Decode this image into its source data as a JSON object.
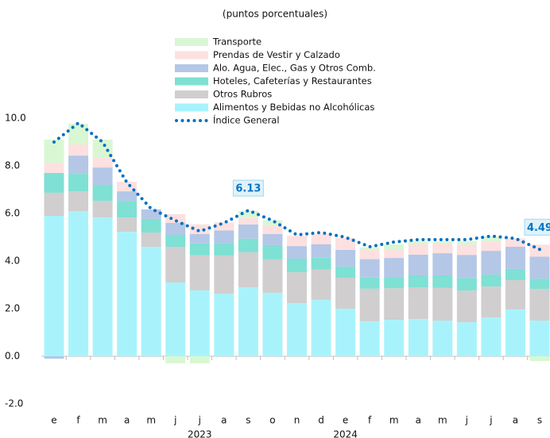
{
  "chart_data": {
    "type": "bar",
    "stacked": true,
    "subtitle": "(puntos porcentuales)",
    "categories": [
      "e",
      "f",
      "m",
      "a",
      "m",
      "j",
      "j",
      "a",
      "s",
      "o",
      "n",
      "d",
      "e",
      "f",
      "m",
      "a",
      "m",
      "j",
      "j",
      "a",
      "s"
    ],
    "year_labels": [
      "2023",
      "2024"
    ],
    "ylim": [
      -2,
      10
    ],
    "yticks": [
      {
        "value": -2,
        "label": "-2.0"
      },
      {
        "value": 0,
        "label": "0.0"
      },
      {
        "value": 2,
        "label": "2.0"
      },
      {
        "value": 4,
        "label": "4.0"
      },
      {
        "value": 6,
        "label": "6.0"
      },
      {
        "value": 8,
        "label": "8.0"
      },
      {
        "value": 10,
        "label": "10.0"
      }
    ],
    "series": [
      {
        "name": "Alimentos y Bebidas no Alcohólicas",
        "color": "#a8f3fb",
        "values": [
          5.9,
          6.1,
          5.83,
          5.23,
          4.6,
          3.1,
          2.77,
          2.63,
          2.9,
          2.67,
          2.23,
          2.37,
          2.0,
          1.47,
          1.53,
          1.57,
          1.5,
          1.43,
          1.63,
          1.97,
          1.5
        ]
      },
      {
        "name": "Otros Rubros",
        "color": "#d0cece",
        "values": [
          0.97,
          0.83,
          0.7,
          0.6,
          0.6,
          1.5,
          1.47,
          1.6,
          1.47,
          1.4,
          1.3,
          1.27,
          1.3,
          1.37,
          1.33,
          1.33,
          1.37,
          1.33,
          1.3,
          1.23,
          1.33
        ]
      },
      {
        "name": "Hoteles, Cafeterías y Restaurantes",
        "color": "#7fe0d4",
        "values": [
          0.83,
          0.73,
          0.67,
          0.7,
          0.57,
          0.5,
          0.5,
          0.53,
          0.57,
          0.6,
          0.57,
          0.5,
          0.47,
          0.47,
          0.47,
          0.5,
          0.53,
          0.53,
          0.5,
          0.47,
          0.43
        ]
      },
      {
        "name": "Alo. Agua, Elec., Gas y Otros Comb.",
        "color": "#b4c7e7",
        "values": [
          -0.1,
          0.77,
          0.73,
          0.4,
          0.4,
          0.5,
          0.4,
          0.53,
          0.6,
          0.47,
          0.53,
          0.57,
          0.7,
          0.77,
          0.8,
          0.87,
          0.93,
          0.97,
          1.0,
          0.93,
          0.93
        ]
      },
      {
        "name": "Prendas de Vestir y Calzado",
        "color": "#fde0e0",
        "values": [
          0.43,
          0.47,
          0.4,
          0.4,
          0.0,
          0.37,
          0.4,
          0.33,
          0.27,
          0.37,
          0.43,
          0.43,
          0.5,
          0.4,
          0.37,
          0.43,
          0.4,
          0.43,
          0.4,
          0.35,
          0.5
        ]
      },
      {
        "name": "Transporte",
        "color": "#d9f7d3",
        "values": [
          0.97,
          0.87,
          0.77,
          0.0,
          0.0,
          -0.3,
          -0.3,
          0.0,
          0.3,
          0.2,
          0.0,
          0.0,
          0.0,
          0.1,
          0.2,
          0.13,
          0.1,
          0.15,
          0.2,
          0.0,
          -0.2
        ]
      },
      {
        "name": "Índice General",
        "type": "line",
        "color": "#0070c0",
        "values": [
          9.0,
          9.8,
          9.0,
          7.3,
          6.2,
          5.7,
          5.25,
          5.6,
          6.13,
          5.7,
          5.1,
          5.2,
          5.0,
          4.6,
          4.8,
          4.9,
          4.9,
          4.9,
          5.05,
          4.95,
          4.49
        ],
        "value_labels": [
          null,
          null,
          null,
          null,
          null,
          null,
          null,
          null,
          "6.13",
          null,
          null,
          null,
          null,
          null,
          null,
          null,
          null,
          null,
          null,
          null,
          "4.49"
        ]
      }
    ]
  }
}
